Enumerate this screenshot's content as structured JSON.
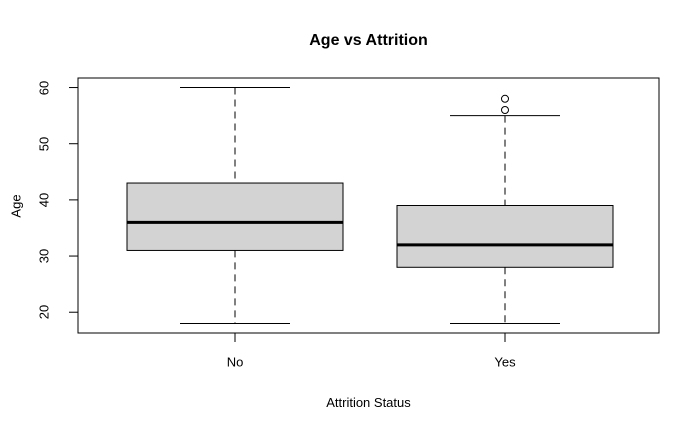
{
  "chart_data": {
    "type": "boxplot",
    "title": "Age vs Attrition",
    "xlabel": "Attrition Status",
    "ylabel": "Age",
    "categories": [
      "No",
      "Yes"
    ],
    "y_ticks": [
      20,
      30,
      40,
      50,
      60
    ],
    "ylim": [
      16.3,
      61.7
    ],
    "grid": false,
    "legend": "none",
    "series": [
      {
        "name": "No",
        "whisker_low": 18,
        "q1": 31,
        "median": 36,
        "q3": 43,
        "whisker_high": 60,
        "outliers": []
      },
      {
        "name": "Yes",
        "whisker_low": 18,
        "q1": 28,
        "median": 32,
        "q3": 39,
        "whisker_high": 55,
        "outliers": [
          56,
          58
        ]
      }
    ],
    "colors": {
      "box_fill": "#d3d3d3",
      "line": "#000000",
      "background": "#ffffff"
    }
  }
}
